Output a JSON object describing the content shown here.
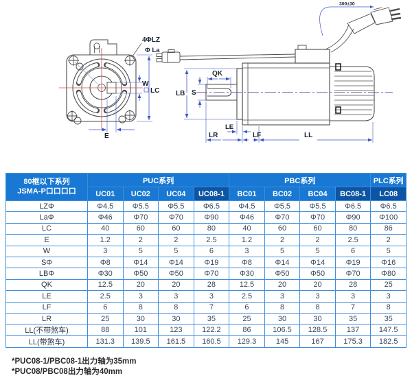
{
  "diagram": {
    "front": {
      "bolt_label": "4ΦLZ",
      "bolt_dia_label": "Φ La",
      "w": "W",
      "lc": "LC",
      "e": "E"
    },
    "side": {
      "qk": "QK",
      "s": "S",
      "lb": "LB",
      "le": "LE",
      "lr": "LR",
      "lf": "LF",
      "ll": "LL",
      "cable": "300±30"
    }
  },
  "table": {
    "corner_header": [
      "80框以下系列",
      "JSMA-P口口口口"
    ],
    "groups": [
      {
        "label": "PUC系列",
        "columns": [
          "UC01",
          "UC02",
          "UC04",
          "UC08-1"
        ],
        "highlight": [
          false,
          false,
          false,
          true
        ]
      },
      {
        "label": "PBC系列",
        "columns": [
          "BC01",
          "BC02",
          "BC04",
          "BC08-1"
        ],
        "highlight": [
          false,
          false,
          false,
          true
        ]
      },
      {
        "label": "PLC系列",
        "columns": [
          "LC08"
        ],
        "highlight": [
          true
        ]
      }
    ],
    "rows": [
      {
        "label": "LZΦ",
        "values": [
          "Φ4.5",
          "Φ5.5",
          "Φ5.5",
          "Φ6.5",
          "Φ4.5",
          "Φ5.5",
          "Φ5.5",
          "Φ6.5",
          "Φ6.5"
        ]
      },
      {
        "label": "LaΦ",
        "values": [
          "Φ46",
          "Φ70",
          "Φ70",
          "Φ90",
          "Φ46",
          "Φ70",
          "Φ70",
          "Φ90",
          "Φ100"
        ]
      },
      {
        "label": "LC",
        "values": [
          "40",
          "60",
          "60",
          "80",
          "40",
          "60",
          "60",
          "80",
          "86"
        ]
      },
      {
        "label": "E",
        "values": [
          "1.2",
          "2",
          "2",
          "2.5",
          "1.2",
          "2",
          "2",
          "2.5",
          "2"
        ]
      },
      {
        "label": "W",
        "values": [
          "3",
          "5",
          "5",
          "6",
          "3",
          "5",
          "5",
          "6",
          "5"
        ]
      },
      {
        "label": "SΦ",
        "values": [
          "Φ8",
          "Φ14",
          "Φ14",
          "Φ19",
          "Φ8",
          "Φ14",
          "Φ14",
          "Φ19",
          "Φ16"
        ]
      },
      {
        "label": "LBΦ",
        "values": [
          "Φ30",
          "Φ50",
          "Φ50",
          "Φ70",
          "Φ30",
          "Φ50",
          "Φ50",
          "Φ70",
          "Φ80"
        ]
      },
      {
        "label": "QK",
        "values": [
          "12.5",
          "20",
          "20",
          "28",
          "12.5",
          "20",
          "20",
          "28",
          "25"
        ]
      },
      {
        "label": "LE",
        "values": [
          "2.5",
          "3",
          "3",
          "3",
          "2.5",
          "3",
          "3",
          "3",
          "3"
        ]
      },
      {
        "label": "LF",
        "values": [
          "6",
          "8",
          "8",
          "7",
          "6",
          "8",
          "8",
          "7",
          "8"
        ]
      },
      {
        "label": "LR",
        "values": [
          "25",
          "30",
          "30",
          "35",
          "25",
          "30",
          "30",
          "35",
          "35"
        ]
      },
      {
        "label": "LL(不带煞车)",
        "values": [
          "88",
          "101",
          "123",
          "122.2",
          "86",
          "106.5",
          "128.5",
          "137",
          "147.5"
        ]
      },
      {
        "label": "LL(带煞车)",
        "values": [
          "131.3",
          "139.5",
          "161.5",
          "160.5",
          "129.3",
          "145",
          "167",
          "175.3",
          "182.5"
        ]
      }
    ]
  },
  "footnotes": [
    "*PUC08-1/PBC08-1出力轴为35mm",
    "*PUC08/PBC08出力轴为40mm"
  ],
  "colors": {
    "header_blue": "#1878d3",
    "header_dark_blue": "#0d55a4",
    "grid_blue": "#3f8edb",
    "dimension_blue": "#3c55c6",
    "centerline_red": "#c0504d",
    "drawing_line": "#4a4a4a"
  }
}
